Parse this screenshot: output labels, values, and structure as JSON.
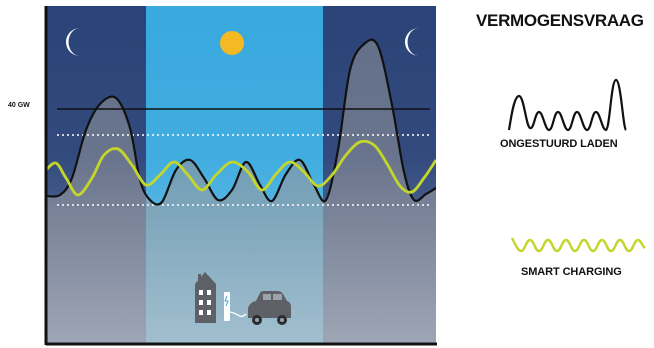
{
  "title": "VERMOGENSVRAAG",
  "y_marker_label": "40 GW",
  "legend": {
    "uncontrolled_label": "ONGESTUURD LADEN",
    "smart_label": "SMART CHARGING"
  },
  "colors": {
    "night": "#2a4378",
    "day": "#39a9de",
    "sun": "#f5b923",
    "moon": "#ffffff",
    "uncontrolled_curve": "#111111",
    "smart_curve": "#c4d62b",
    "reference_line": "#111111",
    "dotted_lines": "#ffffff",
    "axis": "#111111"
  },
  "icons": [
    "moon-icon",
    "sun-icon",
    "moon-icon",
    "house-icon",
    "charger-icon",
    "car-icon"
  ]
}
